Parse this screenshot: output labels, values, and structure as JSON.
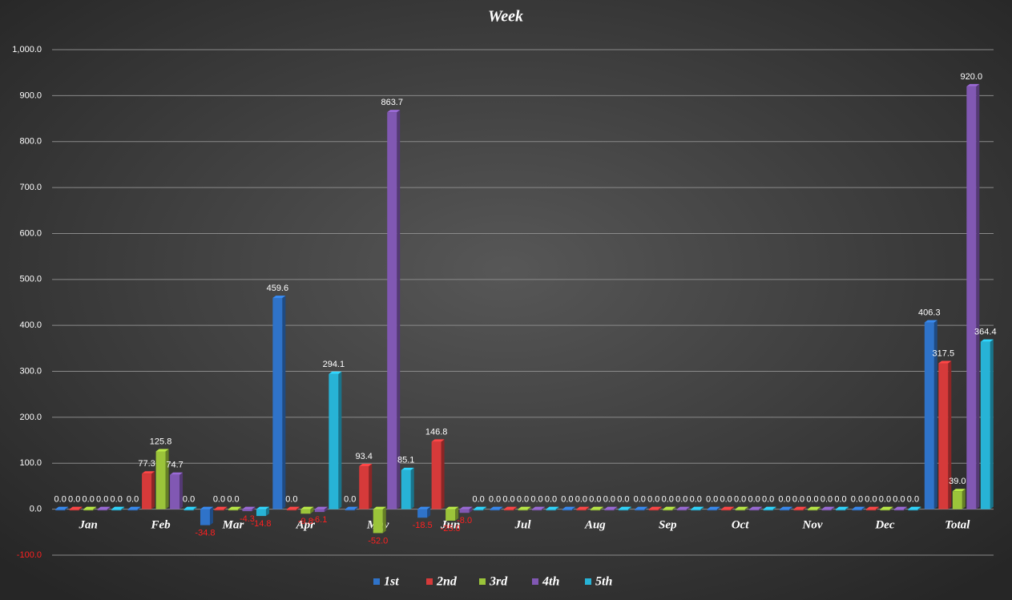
{
  "chart_data": {
    "type": "bar",
    "title": "Week",
    "categories": [
      "Jan",
      "Feb",
      "Mar",
      "Apr",
      "May",
      "Jun",
      "Jul",
      "Aug",
      "Sep",
      "Oct",
      "Nov",
      "Dec",
      "Total"
    ],
    "series": [
      {
        "name": "1st",
        "color": "#2f73c9",
        "values": [
          0,
          0,
          -34.8,
          459.6,
          0,
          -18.5,
          0,
          0,
          0,
          0,
          0,
          0,
          406.3
        ],
        "value_labels": [
          "0.0",
          "0.0",
          "-34.8",
          "459.6",
          "0.0",
          "-18.5",
          "0.0",
          "0.0",
          "0.0",
          "0.0",
          "0.0",
          "0.0",
          "406.3"
        ]
      },
      {
        "name": "2nd",
        "color": "#d63a3a",
        "values": [
          0,
          77.3,
          0,
          0,
          93.4,
          146.8,
          0,
          0,
          0,
          0,
          0,
          0,
          317.5
        ],
        "value_labels": [
          "0.0",
          "77.3",
          "0.0",
          "0.0",
          "93.4",
          "146.8",
          "0.0",
          "0.0",
          "0.0",
          "0.0",
          "0.0",
          "0.0",
          "317.5"
        ]
      },
      {
        "name": "3rd",
        "color": "#9bc43a",
        "values": [
          0,
          125.8,
          0,
          -9.8,
          -52.0,
          -25.0,
          0,
          0,
          0,
          0,
          0,
          0,
          39.0
        ],
        "value_labels": [
          "0.0",
          "125.8",
          "0.0",
          "-9.8",
          "-52.0",
          "-25.0",
          "0.0",
          "0.0",
          "0.0",
          "0.0",
          "0.0",
          "0.0",
          "39.0"
        ]
      },
      {
        "name": "4th",
        "color": "#8158b3",
        "values": [
          0,
          74.7,
          -4.3,
          -6.1,
          863.7,
          -8.0,
          0,
          0,
          0,
          0,
          0,
          0,
          920.0
        ],
        "value_labels": [
          "0.0",
          "74.7",
          "-4.3",
          "-6.1",
          "863.7",
          "-8.0",
          "0.0",
          "0.0",
          "0.0",
          "0.0",
          "0.0",
          "0.0",
          "920.0"
        ]
      },
      {
        "name": "5th",
        "color": "#27b3d6",
        "values": [
          0,
          0,
          -14.8,
          294.1,
          85.1,
          0,
          0,
          0,
          0,
          0,
          0,
          0,
          364.4
        ],
        "value_labels": [
          "0.0",
          "0.0",
          "-14.8",
          "294.1",
          "85.1",
          "0.0",
          "0.0",
          "0.0",
          "0.0",
          "0.0",
          "0.0",
          "0.0",
          "364.4"
        ]
      }
    ],
    "ylim": [
      -100,
      1000
    ],
    "yticks": [
      {
        "value": -100,
        "label": "-100.0"
      },
      {
        "value": 0,
        "label": "0.0"
      },
      {
        "value": 100,
        "label": "100.0"
      },
      {
        "value": 200,
        "label": "200.0"
      },
      {
        "value": 300,
        "label": "300.0"
      },
      {
        "value": 400,
        "label": "400.0"
      },
      {
        "value": 500,
        "label": "500.0"
      },
      {
        "value": 600,
        "label": "600.0"
      },
      {
        "value": 700,
        "label": "700.0"
      },
      {
        "value": 800,
        "label": "800.0"
      },
      {
        "value": 900,
        "label": "900.0"
      },
      {
        "value": 1000,
        "label": "1,000.0"
      }
    ],
    "grid": true,
    "legend": "bottom"
  }
}
